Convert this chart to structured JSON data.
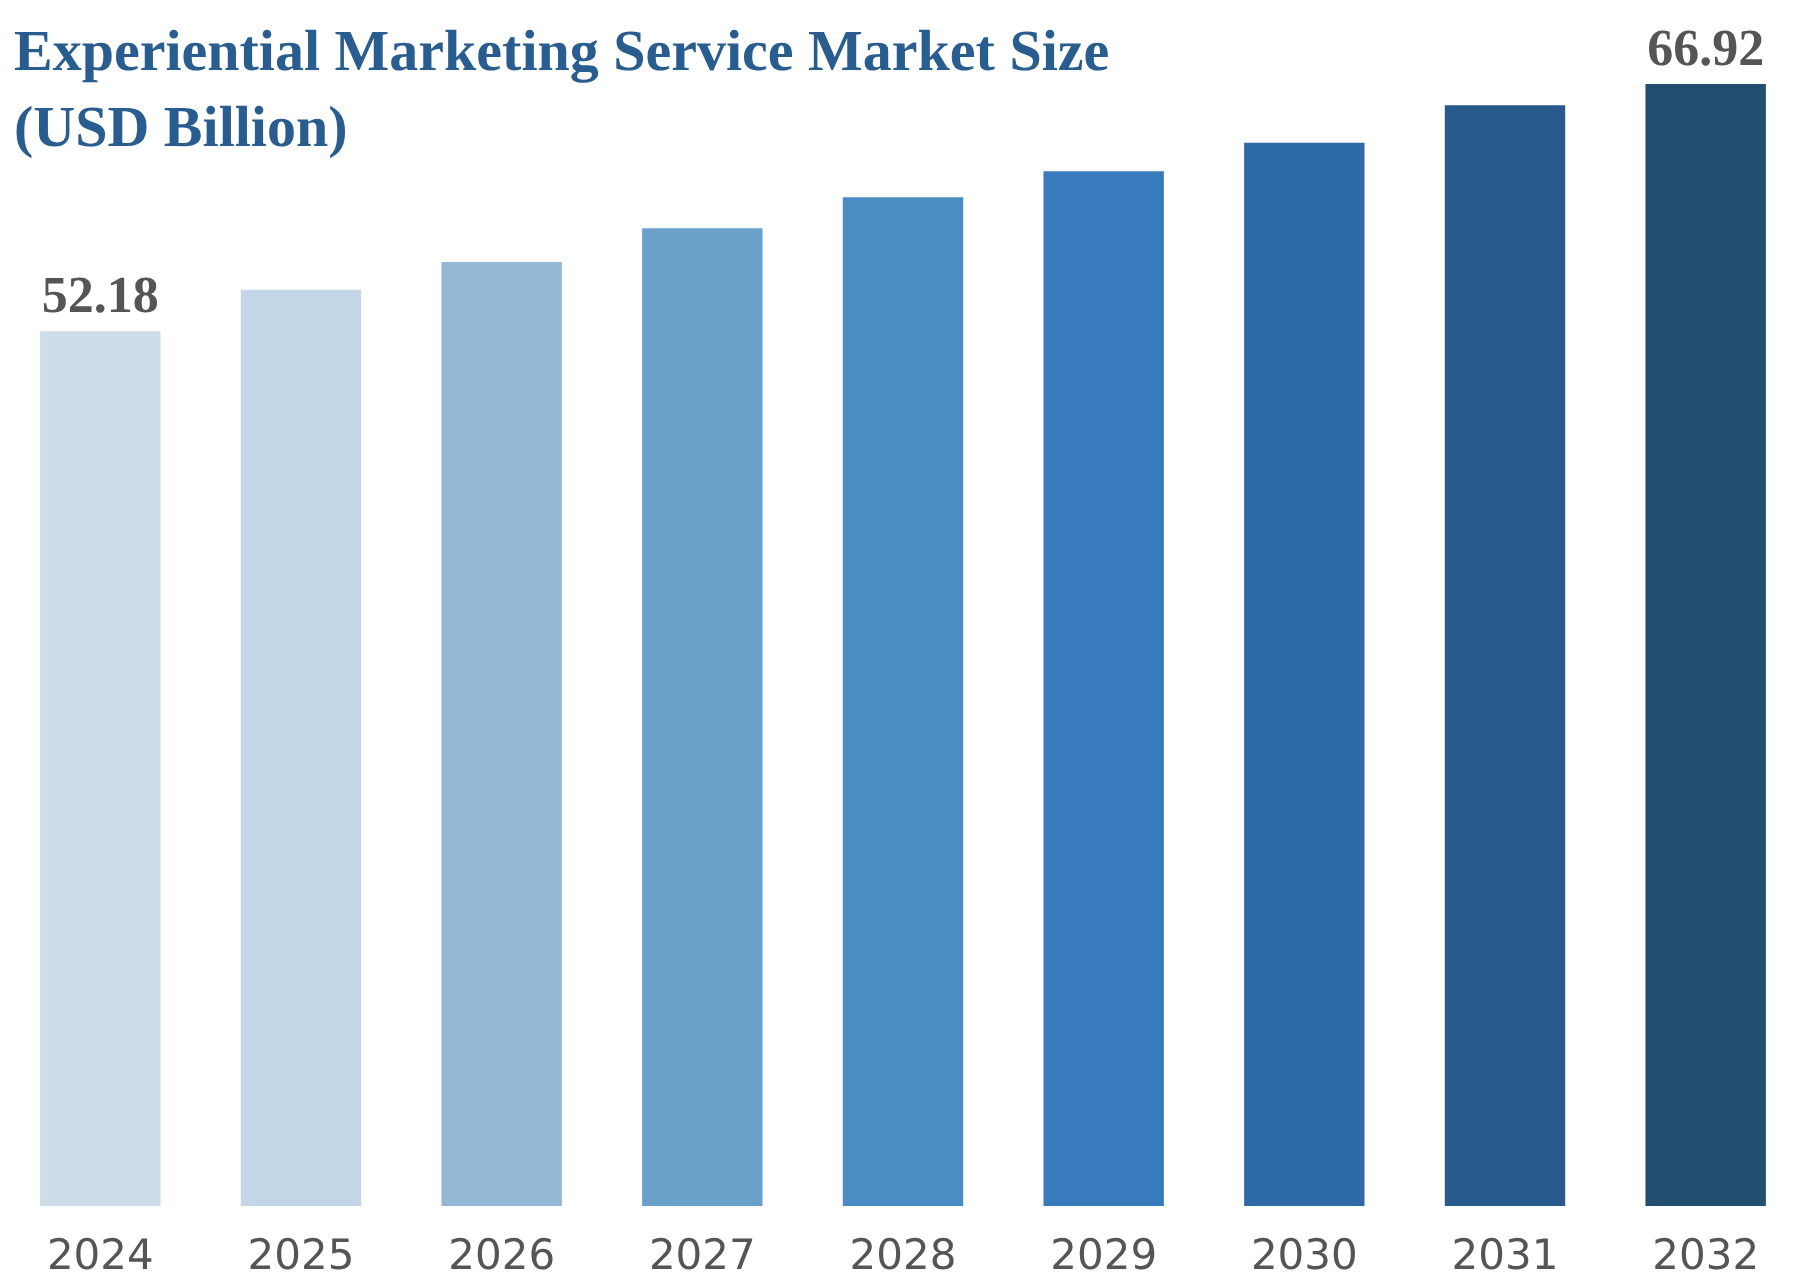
{
  "chart_data": {
    "type": "bar",
    "title": "Experiential Marketing Service Market Size\n(USD Billion)",
    "categories": [
      "2024",
      "2025",
      "2026",
      "2027",
      "2028",
      "2029",
      "2030",
      "2031",
      "2032"
    ],
    "values": [
      52.18,
      54.65,
      56.31,
      58.32,
      60.17,
      61.71,
      63.41,
      65.65,
      66.92
    ],
    "colors": [
      "#cddde9",
      "#c2d6e8",
      "#93b9d6",
      "#6aa1cb",
      "#4a8cc4",
      "#387bbd",
      "#2e6aa5",
      "#285a8c",
      "#224e70"
    ],
    "value_labels": [
      "52.18",
      null,
      null,
      null,
      null,
      null,
      null,
      null,
      "66.92"
    ]
  }
}
